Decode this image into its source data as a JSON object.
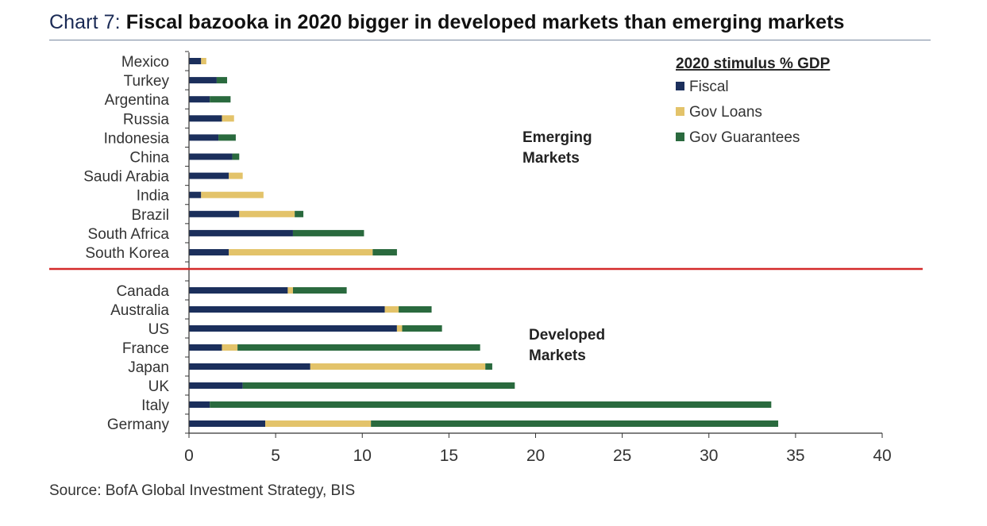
{
  "title": {
    "prefix": "Chart 7:",
    "main": "Fiscal bazooka in 2020 bigger in developed markets than emerging markets"
  },
  "source": "Source: BofA Global Investment Strategy, BIS",
  "colors": {
    "fiscal": "#1b2f5c",
    "loans": "#e3c36a",
    "guarantees": "#2a6a3e",
    "divider": "#d42a2a",
    "axis": "#333333"
  },
  "chart_data": {
    "type": "bar",
    "orientation": "horizontal",
    "stacked": true,
    "xlabel": "",
    "ylabel": "",
    "xlim": [
      0,
      40
    ],
    "xticks": [
      0,
      5,
      10,
      15,
      20,
      25,
      30,
      35,
      40
    ],
    "legend": {
      "title": "2020 stimulus % GDP",
      "placement": "top-right"
    },
    "groups": [
      {
        "label_lines": [
          "Emerging",
          "Markets"
        ],
        "categories": [
          "Mexico",
          "Turkey",
          "Argentina",
          "Russia",
          "Indonesia",
          "China",
          "Saudi Arabia",
          "India",
          "Brazil",
          "South Africa",
          "South Korea"
        ]
      },
      {
        "label_lines": [
          "Developed",
          "Markets"
        ],
        "categories": [
          "Canada",
          "Australia",
          "US",
          "France",
          "Japan",
          "UK",
          "Italy",
          "Germany"
        ]
      }
    ],
    "categories": [
      "Mexico",
      "Turkey",
      "Argentina",
      "Russia",
      "Indonesia",
      "China",
      "Saudi Arabia",
      "India",
      "Brazil",
      "South Africa",
      "South Korea",
      "Canada",
      "Australia",
      "US",
      "France",
      "Japan",
      "UK",
      "Italy",
      "Germany"
    ],
    "series": [
      {
        "name": "Fiscal",
        "values": [
          0.7,
          1.6,
          1.2,
          1.9,
          1.7,
          2.5,
          2.3,
          0.7,
          2.9,
          6.0,
          2.3,
          5.7,
          11.3,
          12.0,
          1.9,
          7.0,
          3.1,
          1.2,
          4.4
        ]
      },
      {
        "name": "Gov Loans",
        "values": [
          0.3,
          0.0,
          0.0,
          0.7,
          0.0,
          0.0,
          0.8,
          3.6,
          3.2,
          0.0,
          8.3,
          0.3,
          0.8,
          0.3,
          0.9,
          10.1,
          0.0,
          0.0,
          6.1
        ]
      },
      {
        "name": "Gov Guarantees",
        "values": [
          0.0,
          0.6,
          1.2,
          0.0,
          1.0,
          0.4,
          0.0,
          0.0,
          0.5,
          4.1,
          1.4,
          3.1,
          1.9,
          2.3,
          14.0,
          0.4,
          15.7,
          32.4,
          23.5
        ]
      }
    ]
  }
}
